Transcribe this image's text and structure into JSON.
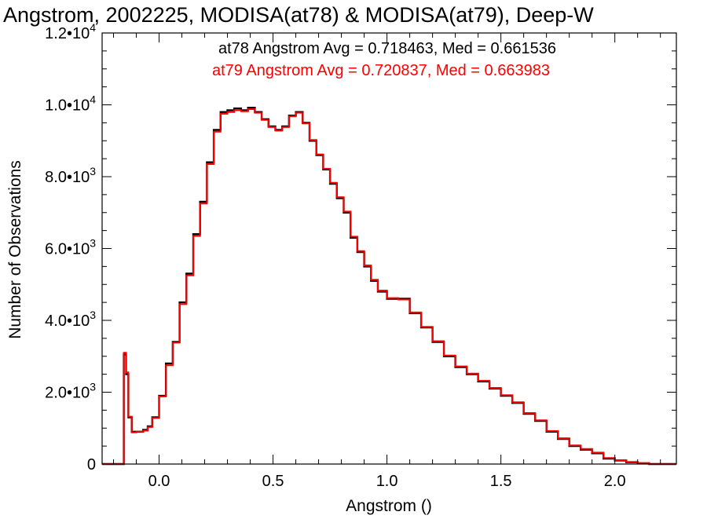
{
  "chart_data": {
    "type": "line",
    "title": "Angstrom, 2002225, MODISA(at78) & MODISA(at79), Deep-W",
    "xlabel": "Angstrom ()",
    "ylabel": "Number of Observations",
    "xlim": [
      -0.25,
      2.27
    ],
    "ylim": [
      0,
      12000
    ],
    "x_ticks": [
      {
        "value": 0.0,
        "label": "0.0"
      },
      {
        "value": 0.5,
        "label": "0.5"
      },
      {
        "value": 1.0,
        "label": "1.0"
      },
      {
        "value": 1.5,
        "label": "1.5"
      },
      {
        "value": 2.0,
        "label": "2.0"
      }
    ],
    "y_ticks": [
      {
        "value": 0,
        "mantissa": "0",
        "exponent": ""
      },
      {
        "value": 2000,
        "mantissa": "2.0•10",
        "exponent": "3"
      },
      {
        "value": 4000,
        "mantissa": "4.0•10",
        "exponent": "3"
      },
      {
        "value": 6000,
        "mantissa": "6.0•10",
        "exponent": "3"
      },
      {
        "value": 8000,
        "mantissa": "8.0•10",
        "exponent": "3"
      },
      {
        "value": 10000,
        "mantissa": "1.0•10",
        "exponent": "4"
      },
      {
        "value": 12000,
        "mantissa": "1.2•10",
        "exponent": "4"
      }
    ],
    "grid": false,
    "annotations": [
      {
        "text": "at78 Angstrom Avg = 0.718463, Med = 0.661536",
        "color": "#000000"
      },
      {
        "text": "at79 Angstrom Avg = 0.720837, Med = 0.663983",
        "color": "#ff0000"
      }
    ],
    "series": [
      {
        "color": "#000000",
        "x": [
          -0.25,
          -0.16,
          -0.155,
          -0.145,
          -0.135,
          -0.12,
          -0.1,
          -0.07,
          -0.05,
          -0.03,
          0.0,
          0.03,
          0.06,
          0.09,
          0.12,
          0.15,
          0.18,
          0.21,
          0.24,
          0.27,
          0.3,
          0.33,
          0.36,
          0.39,
          0.42,
          0.45,
          0.48,
          0.51,
          0.54,
          0.57,
          0.6,
          0.63,
          0.66,
          0.69,
          0.72,
          0.75,
          0.78,
          0.81,
          0.84,
          0.87,
          0.9,
          0.93,
          0.96,
          1.0,
          1.05,
          1.1,
          1.15,
          1.2,
          1.25,
          1.3,
          1.35,
          1.4,
          1.45,
          1.5,
          1.55,
          1.6,
          1.65,
          1.7,
          1.75,
          1.8,
          1.85,
          1.9,
          1.95,
          2.0,
          2.05,
          2.1,
          2.15,
          2.2,
          2.27
        ],
        "y": [
          0,
          0,
          3050,
          2500,
          1300,
          900,
          900,
          950,
          1050,
          1300,
          1900,
          2800,
          3400,
          4500,
          5300,
          6400,
          7300,
          8400,
          9300,
          9800,
          9850,
          9900,
          9850,
          9920,
          9800,
          9600,
          9400,
          9300,
          9400,
          9700,
          9800,
          9500,
          9000,
          8600,
          8200,
          7800,
          7400,
          7000,
          6300,
          5900,
          5500,
          5100,
          4800,
          4600,
          4600,
          4200,
          3800,
          3400,
          3000,
          2700,
          2500,
          2300,
          2100,
          1900,
          1700,
          1400,
          1200,
          900,
          700,
          500,
          400,
          300,
          150,
          100,
          50,
          20,
          0,
          0,
          0
        ],
        "name": ""
      },
      {
        "color": "#ff0000",
        "x": [
          -0.25,
          -0.16,
          -0.155,
          -0.145,
          -0.135,
          -0.12,
          -0.1,
          -0.07,
          -0.05,
          -0.03,
          0.0,
          0.03,
          0.06,
          0.09,
          0.12,
          0.15,
          0.18,
          0.21,
          0.24,
          0.27,
          0.3,
          0.33,
          0.36,
          0.39,
          0.42,
          0.45,
          0.48,
          0.51,
          0.54,
          0.57,
          0.6,
          0.63,
          0.66,
          0.69,
          0.72,
          0.75,
          0.78,
          0.81,
          0.84,
          0.87,
          0.9,
          0.93,
          0.96,
          1.0,
          1.05,
          1.1,
          1.15,
          1.2,
          1.25,
          1.3,
          1.35,
          1.4,
          1.45,
          1.5,
          1.55,
          1.6,
          1.65,
          1.7,
          1.75,
          1.8,
          1.85,
          1.9,
          1.95,
          2.0,
          2.05,
          2.1,
          2.15,
          2.2,
          2.27
        ],
        "y": [
          0,
          0,
          3100,
          2550,
          1320,
          880,
          900,
          930,
          1030,
          1280,
          1880,
          2750,
          3380,
          4450,
          5250,
          6350,
          7250,
          8350,
          9250,
          9750,
          9800,
          9850,
          9820,
          9880,
          9780,
          9580,
          9380,
          9280,
          9380,
          9680,
          9780,
          9480,
          9020,
          8620,
          8220,
          7830,
          7430,
          7030,
          6330,
          5930,
          5530,
          5130,
          4830,
          4620,
          4580,
          4220,
          3820,
          3420,
          3020,
          2720,
          2520,
          2320,
          2120,
          1920,
          1720,
          1420,
          1220,
          920,
          720,
          520,
          420,
          320,
          170,
          110,
          60,
          30,
          0,
          0,
          0
        ],
        "name": ""
      }
    ]
  }
}
